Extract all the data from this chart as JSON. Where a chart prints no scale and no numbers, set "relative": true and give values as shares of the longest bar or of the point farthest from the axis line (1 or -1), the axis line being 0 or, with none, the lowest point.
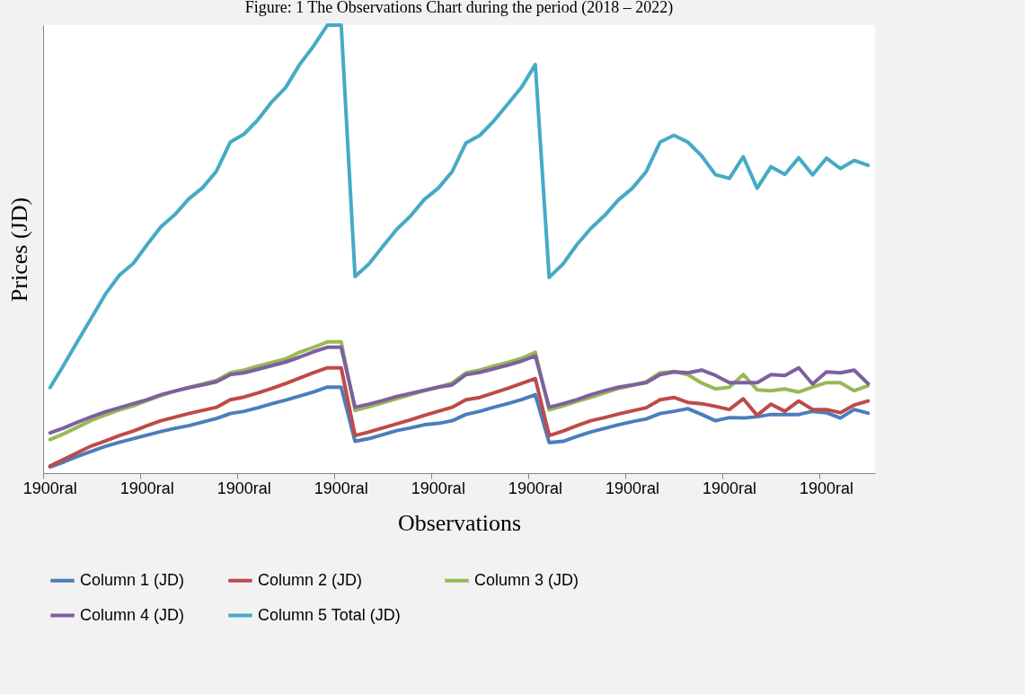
{
  "chart_data": {
    "type": "line",
    "title": "Figure: 1 The Observations Chart during the period (2018 – 2022)",
    "xlabel": "Observations",
    "ylabel": "Prices (JD)",
    "relative": true,
    "categories": [
      "1900ral",
      null,
      null,
      null,
      null,
      null,
      null,
      "1900ral",
      null,
      null,
      null,
      null,
      null,
      null,
      "1900ral",
      null,
      null,
      null,
      null,
      null,
      null,
      "1900ral",
      null,
      null,
      null,
      null,
      null,
      null,
      "1900ral",
      null,
      null,
      null,
      null,
      null,
      null,
      "1900ral",
      null,
      null,
      null,
      null,
      null,
      null,
      "1900ral",
      null,
      null,
      null,
      null,
      null,
      null,
      "1900ral",
      null,
      null,
      null,
      null,
      null,
      null,
      "1900ral",
      null,
      null,
      null
    ],
    "legend": "bottom",
    "series": [
      {
        "name": "Column 1 (JD)",
        "color": "#4a7ebb",
        "values": [
          0.014,
          0.025,
          0.038,
          0.049,
          0.06,
          0.069,
          0.077,
          0.085,
          0.093,
          0.1,
          0.106,
          0.114,
          0.122,
          0.133,
          0.138,
          0.146,
          0.155,
          0.163,
          0.172,
          0.181,
          0.192,
          0.192,
          0.071,
          0.077,
          0.086,
          0.095,
          0.101,
          0.108,
          0.111,
          0.117,
          0.131,
          0.138,
          0.147,
          0.155,
          0.164,
          0.175,
          0.068,
          0.071,
          0.082,
          0.092,
          0.1,
          0.108,
          0.115,
          0.121,
          0.133,
          0.138,
          0.144,
          0.131,
          0.117,
          0.124,
          0.123,
          0.126,
          0.131,
          0.131,
          0.131,
          0.138,
          0.135,
          0.123,
          0.142,
          0.134
        ]
      },
      {
        "name": "Column 2 (JD)",
        "color": "#be4b48",
        "values": [
          0.016,
          0.031,
          0.046,
          0.061,
          0.072,
          0.084,
          0.094,
          0.106,
          0.117,
          0.125,
          0.133,
          0.14,
          0.147,
          0.164,
          0.17,
          0.179,
          0.189,
          0.2,
          0.212,
          0.224,
          0.235,
          0.235,
          0.084,
          0.092,
          0.101,
          0.11,
          0.119,
          0.129,
          0.138,
          0.147,
          0.164,
          0.169,
          0.179,
          0.189,
          0.2,
          0.211,
          0.084,
          0.094,
          0.106,
          0.117,
          0.124,
          0.132,
          0.139,
          0.146,
          0.164,
          0.169,
          0.158,
          0.155,
          0.149,
          0.142,
          0.166,
          0.129,
          0.154,
          0.138,
          0.161,
          0.142,
          0.142,
          0.135,
          0.152,
          0.161
        ]
      },
      {
        "name": "Column 3 (JD)",
        "color": "#98b954",
        "values": [
          0.075,
          0.088,
          0.103,
          0.118,
          0.13,
          0.141,
          0.15,
          0.162,
          0.173,
          0.183,
          0.191,
          0.199,
          0.207,
          0.224,
          0.23,
          0.239,
          0.247,
          0.255,
          0.27,
          0.281,
          0.293,
          0.293,
          0.14,
          0.148,
          0.157,
          0.166,
          0.175,
          0.184,
          0.192,
          0.201,
          0.224,
          0.23,
          0.239,
          0.247,
          0.256,
          0.27,
          0.141,
          0.15,
          0.16,
          0.169,
          0.179,
          0.189,
          0.196,
          0.204,
          0.224,
          0.227,
          0.22,
          0.201,
          0.188,
          0.192,
          0.22,
          0.186,
          0.184,
          0.188,
          0.181,
          0.192,
          0.202,
          0.202,
          0.184,
          0.195
        ]
      },
      {
        "name": "Column 4 (JD)",
        "color": "#7d60a0",
        "values": [
          0.09,
          0.101,
          0.114,
          0.126,
          0.137,
          0.146,
          0.155,
          0.164,
          0.175,
          0.183,
          0.191,
          0.197,
          0.204,
          0.22,
          0.224,
          0.232,
          0.24,
          0.248,
          0.259,
          0.271,
          0.281,
          0.281,
          0.147,
          0.154,
          0.162,
          0.171,
          0.178,
          0.185,
          0.192,
          0.197,
          0.22,
          0.225,
          0.233,
          0.241,
          0.25,
          0.262,
          0.147,
          0.155,
          0.164,
          0.175,
          0.184,
          0.192,
          0.197,
          0.202,
          0.22,
          0.226,
          0.224,
          0.23,
          0.218,
          0.202,
          0.202,
          0.202,
          0.22,
          0.218,
          0.235,
          0.199,
          0.226,
          0.224,
          0.23,
          0.2
        ]
      },
      {
        "name": "Column 5 Total (JD)",
        "color": "#46aac5",
        "values": [
          0.191,
          0.242,
          0.295,
          0.347,
          0.4,
          0.442,
          0.468,
          0.51,
          0.55,
          0.577,
          0.612,
          0.637,
          0.674,
          0.739,
          0.757,
          0.789,
          0.829,
          0.861,
          0.912,
          0.953,
          1,
          1,
          0.439,
          0.467,
          0.506,
          0.544,
          0.574,
          0.611,
          0.636,
          0.673,
          0.737,
          0.754,
          0.786,
          0.823,
          0.861,
          0.912,
          0.437,
          0.467,
          0.51,
          0.546,
          0.575,
          0.61,
          0.636,
          0.673,
          0.739,
          0.754,
          0.739,
          0.708,
          0.666,
          0.658,
          0.706,
          0.636,
          0.684,
          0.667,
          0.704,
          0.666,
          0.703,
          0.68,
          0.698,
          0.687
        ]
      }
    ]
  }
}
